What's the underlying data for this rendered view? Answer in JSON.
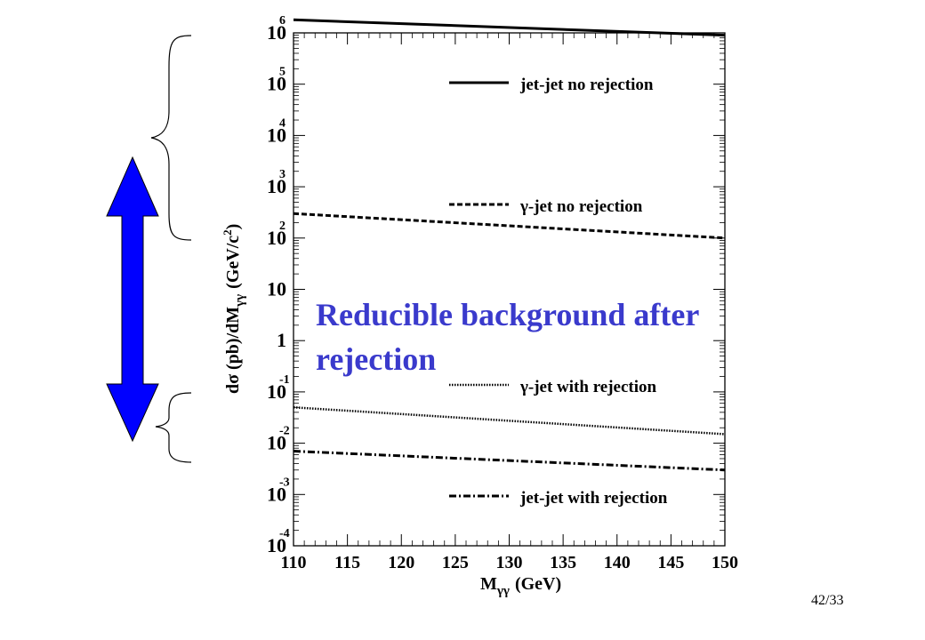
{
  "chart_data": {
    "type": "line",
    "xlabel_main": "M",
    "xlabel_sub": "γγ",
    "xlabel_unit": "(GeV)",
    "ylabel_left": "dσ (pb)/dM",
    "ylabel_sub": "γγ",
    "ylabel_unit": "(GeV/c",
    "ylabel_sup": "2",
    "ylabel_close": ")",
    "xlim": [
      110,
      150
    ],
    "ylim": [
      0.0001,
      1000000
    ],
    "yscale": "log",
    "xticks": [
      "110",
      "115",
      "120",
      "125",
      "130",
      "135",
      "140",
      "145",
      "150"
    ],
    "yticks": [
      {
        "main": "10",
        "exp": "6"
      },
      {
        "main": "10",
        "exp": "5"
      },
      {
        "main": "10",
        "exp": "4"
      },
      {
        "main": "10",
        "exp": "3"
      },
      {
        "main": "10",
        "exp": "2"
      },
      {
        "main": "10",
        "exp": ""
      },
      {
        "main": "1",
        "exp": ""
      },
      {
        "main": "10",
        "exp": "-1"
      },
      {
        "main": "10",
        "exp": "-2"
      },
      {
        "main": "10",
        "exp": "-3"
      },
      {
        "main": "10",
        "exp": "-4"
      }
    ],
    "series": [
      {
        "name": "jet-jet no rejection",
        "style": "solid",
        "x": [
          110,
          150
        ],
        "y": [
          1800000,
          900000
        ]
      },
      {
        "name": "γ-jet no rejection",
        "style": "dashed",
        "x": [
          110,
          150
        ],
        "y": [
          300,
          100
        ]
      },
      {
        "name": "γ-jet with rejection",
        "style": "dotted",
        "x": [
          110,
          150
        ],
        "y": [
          0.05,
          0.015
        ]
      },
      {
        "name": "jet-jet with rejection",
        "style": "dashdot",
        "x": [
          110,
          150
        ],
        "y": [
          0.007,
          0.003
        ]
      }
    ],
    "legend_placement": "right"
  },
  "callout": {
    "line1": "Reducible background after",
    "line2": "rejection",
    "color": "#3a3acc"
  },
  "arrow": {
    "color": "#0000ff",
    "direction": "vertical double-headed"
  },
  "slide_number": "42/33"
}
